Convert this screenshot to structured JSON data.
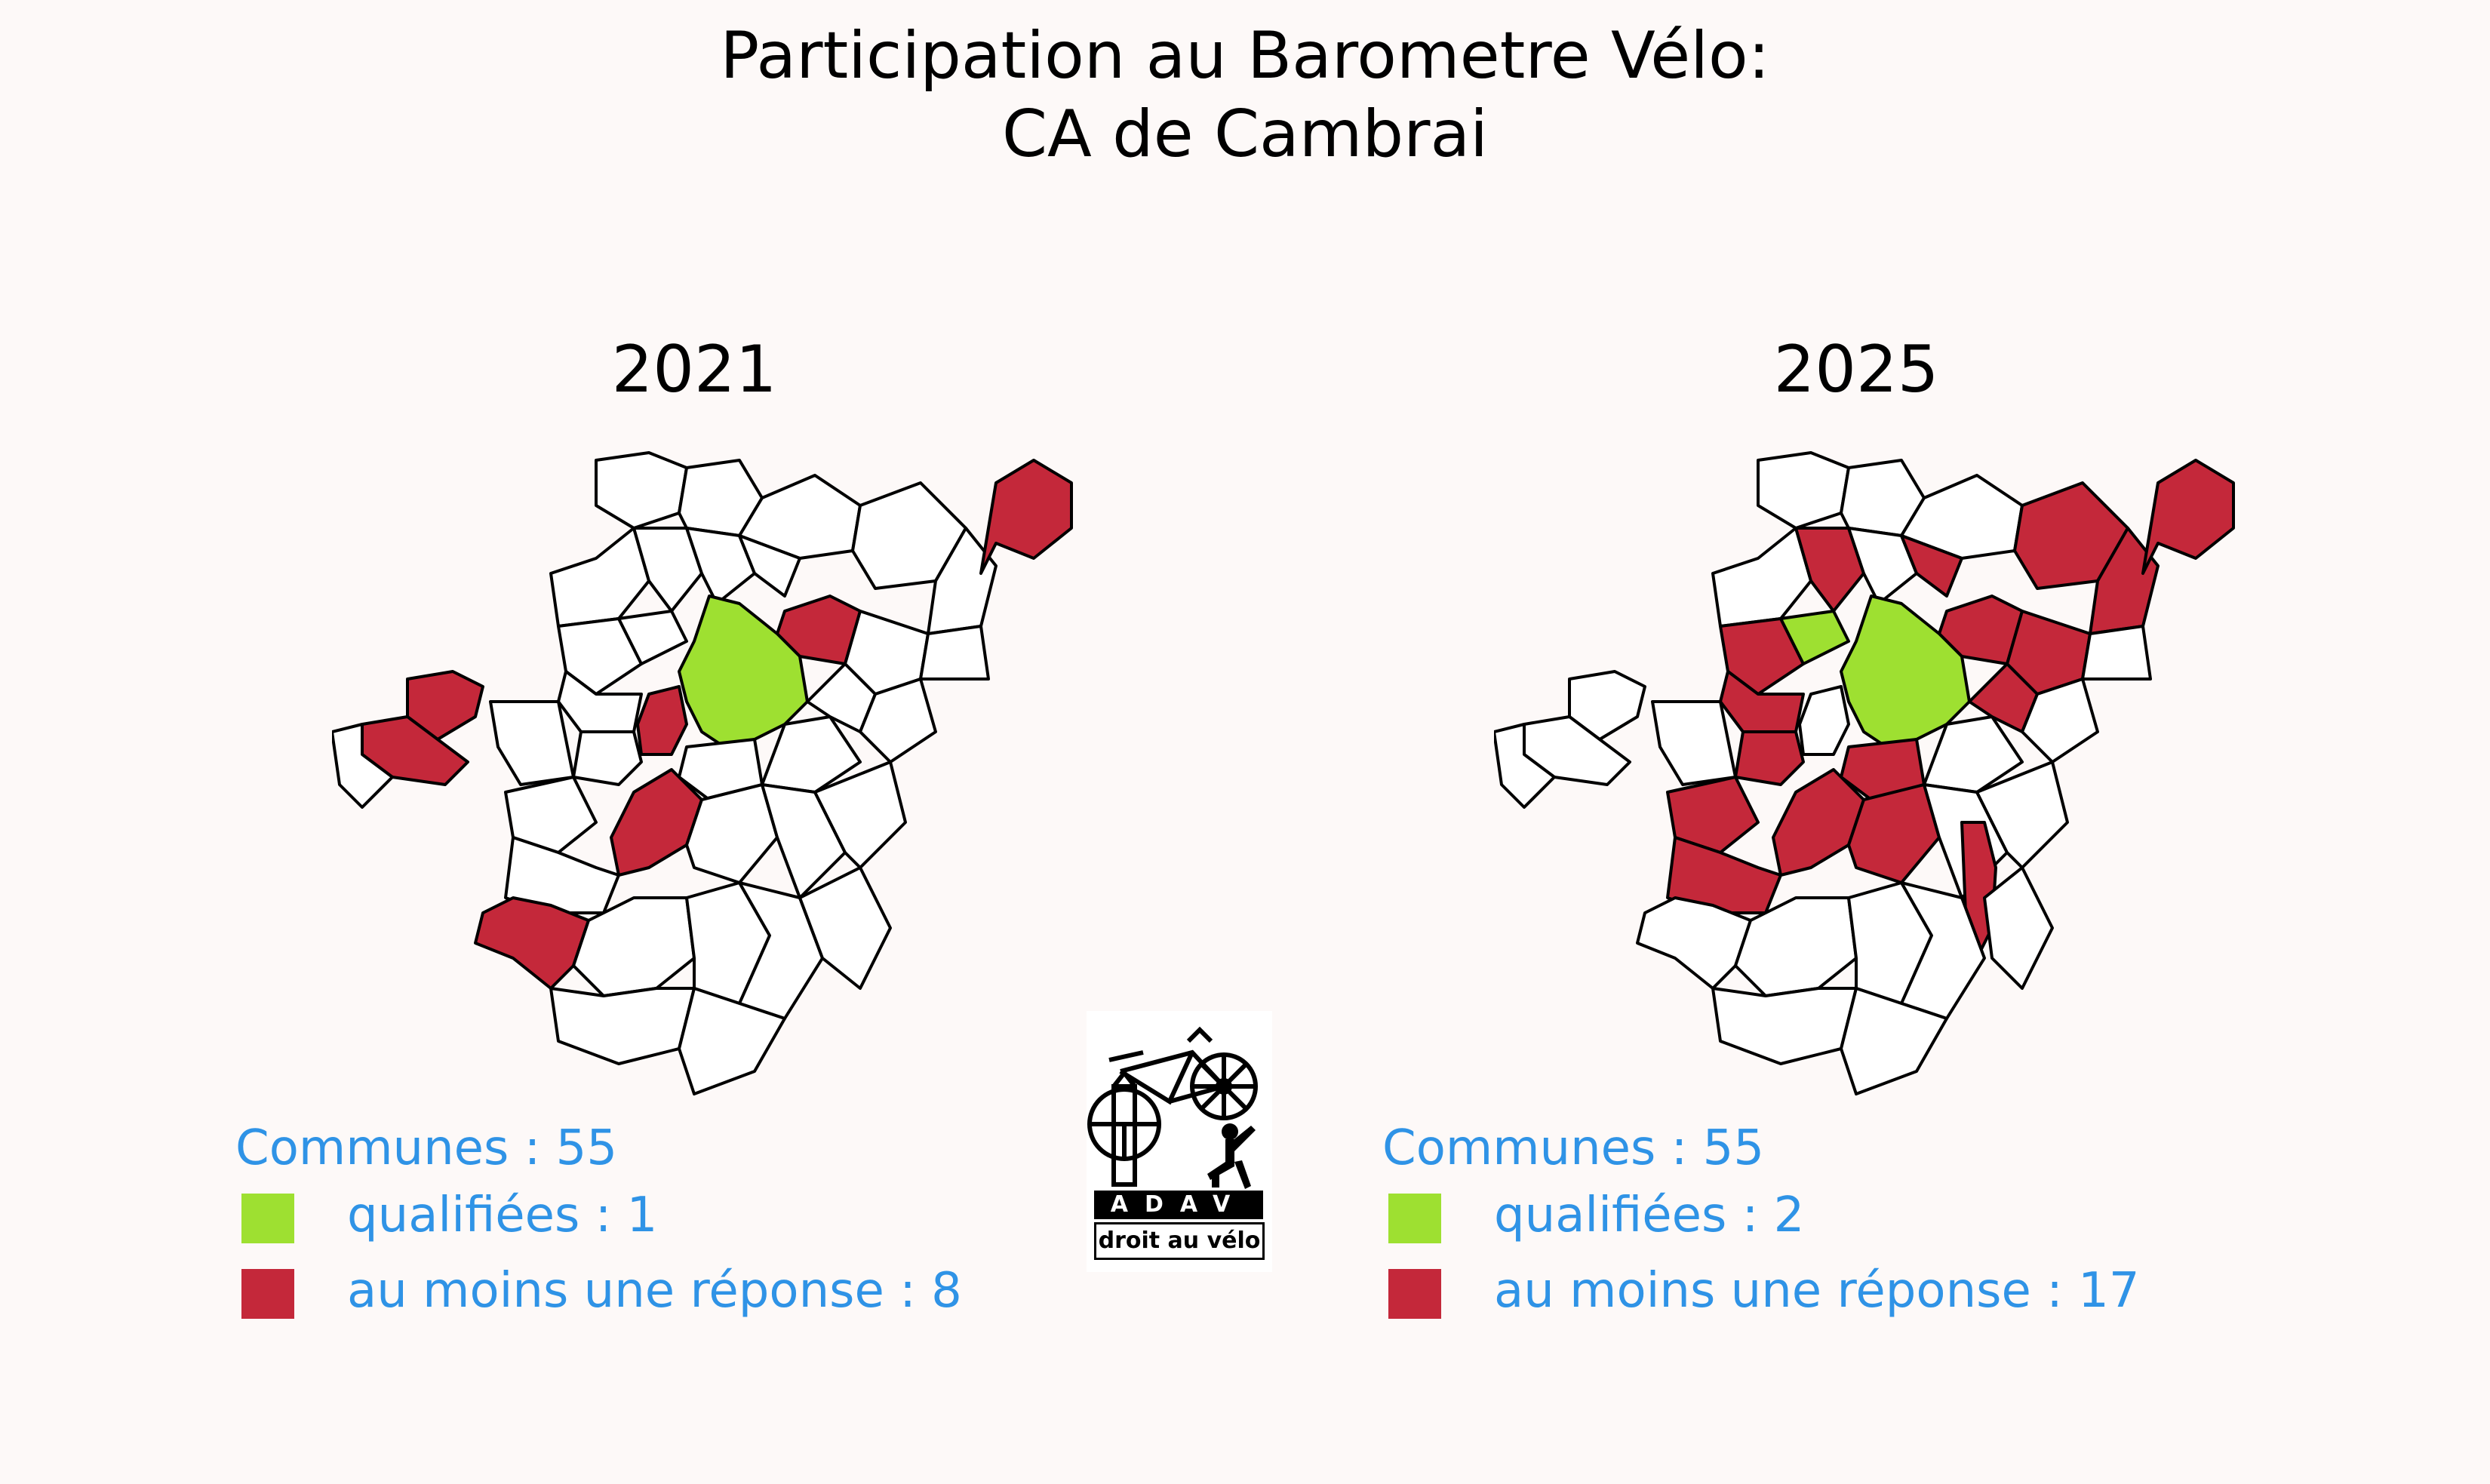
{
  "title": {
    "line1": "Participation au Barometre Vélo:",
    "line2": "CA de Cambrai"
  },
  "colors": {
    "qualified": "#9ee031",
    "answered": "#c4283a",
    "none": "#ffffff",
    "legend_text": "#2f93e6"
  },
  "panels": [
    {
      "year": "2021",
      "communes_label": "Communes : 55",
      "qualified_label": "qualifiées : 1",
      "answered_label": "au moins une réponse : 8"
    },
    {
      "year": "2025",
      "communes_label": "Communes : 55",
      "qualified_label": "qualifiées : 2",
      "answered_label": "au moins une réponse : 17"
    }
  ],
  "logo": {
    "name": "ADAV",
    "tagline": "droit au vélo"
  }
}
